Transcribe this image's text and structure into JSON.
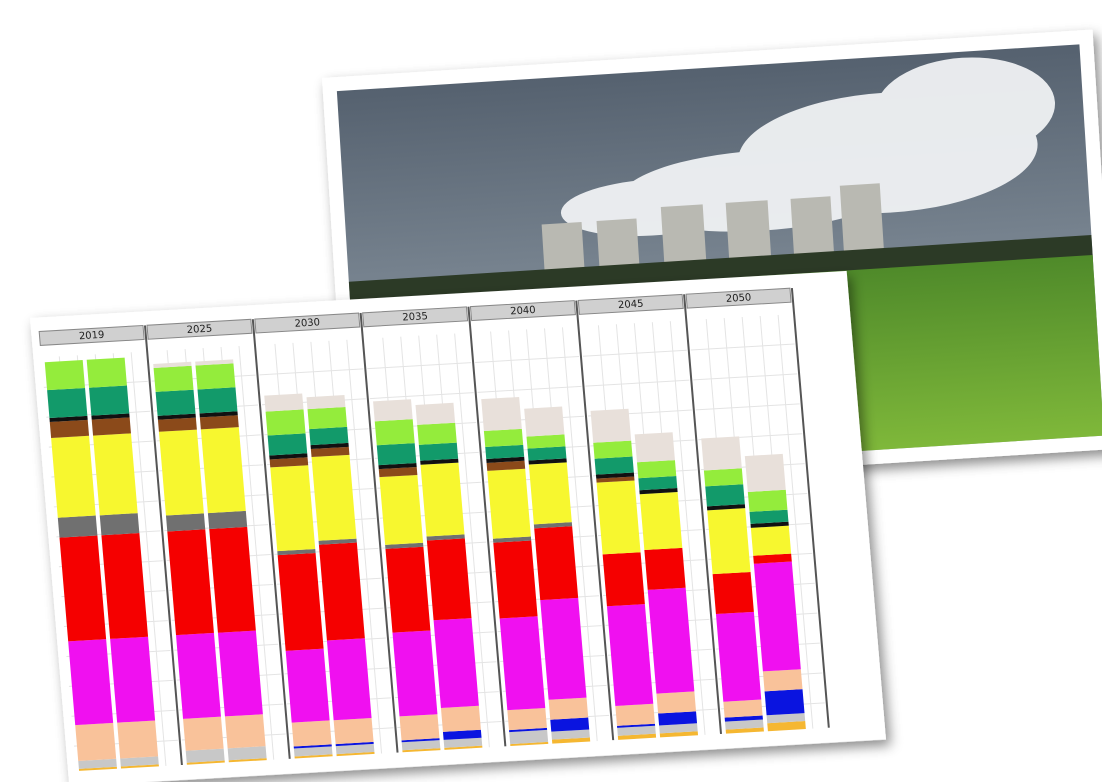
{
  "chart_data": {
    "type": "bar",
    "categories": [
      "2019",
      null,
      "2025",
      null,
      "2030",
      null,
      "2035",
      null,
      "2040",
      null,
      "2045",
      null,
      "2050",
      null
    ],
    "series": [
      {
        "color": "#f5b731",
        "values": [
          0.5,
          0.5,
          0.5,
          0.5,
          0.5,
          0.5,
          0.5,
          0.5,
          0.5,
          1,
          1,
          1,
          1,
          2
        ]
      },
      {
        "color": "#c8c8c8",
        "values": [
          2,
          2,
          3,
          3,
          2,
          2,
          2,
          2,
          3,
          2,
          2,
          2,
          2,
          2
        ]
      },
      {
        "color": "#0a14e0",
        "values": [
          0,
          0,
          0,
          0,
          0.5,
          0.5,
          0.5,
          2,
          0.5,
          3,
          0.5,
          3,
          1,
          6
        ]
      },
      {
        "color": "#f9c29a",
        "values": [
          9,
          9,
          8,
          8,
          6,
          6,
          6,
          6,
          5,
          5,
          5,
          5,
          4,
          5
        ]
      },
      {
        "color": "#f010f0",
        "values": [
          21,
          21,
          21,
          21,
          18,
          20,
          21,
          22,
          23,
          25,
          25,
          26,
          22,
          27
        ]
      },
      {
        "color": "#f50000",
        "values": [
          26,
          26,
          26,
          26,
          24,
          24,
          21,
          20,
          19,
          18,
          13,
          10,
          10,
          2
        ]
      },
      {
        "color": "#707070",
        "values": [
          5,
          5,
          4,
          4,
          1,
          1,
          1,
          1,
          1,
          1,
          0,
          0,
          0,
          0
        ]
      },
      {
        "color": "#f7f72f",
        "values": [
          20,
          20,
          21,
          21,
          21,
          21,
          17,
          18,
          17,
          15,
          18,
          14,
          16,
          7
        ]
      },
      {
        "color": "#8b4a1a",
        "values": [
          4,
          4,
          3,
          3,
          2,
          2,
          2,
          0,
          2,
          0,
          1,
          0,
          0,
          0
        ]
      },
      {
        "color": "#111111",
        "values": [
          1,
          1,
          1,
          1,
          1,
          1,
          1,
          1,
          1,
          1,
          1,
          1,
          1,
          1
        ]
      },
      {
        "color": "#129a6a",
        "values": [
          7,
          7,
          6,
          6,
          5,
          4,
          5,
          4,
          3,
          3,
          4,
          3,
          5,
          3
        ]
      },
      {
        "color": "#94ec3c",
        "values": [
          7,
          7,
          6,
          6,
          6,
          5,
          6,
          5,
          4,
          3,
          4,
          4,
          4,
          5
        ]
      },
      {
        "color": "#e8e0da",
        "values": [
          0,
          0,
          1,
          1,
          4,
          3,
          5,
          5,
          8,
          7,
          8,
          7,
          8,
          9
        ]
      }
    ]
  }
}
